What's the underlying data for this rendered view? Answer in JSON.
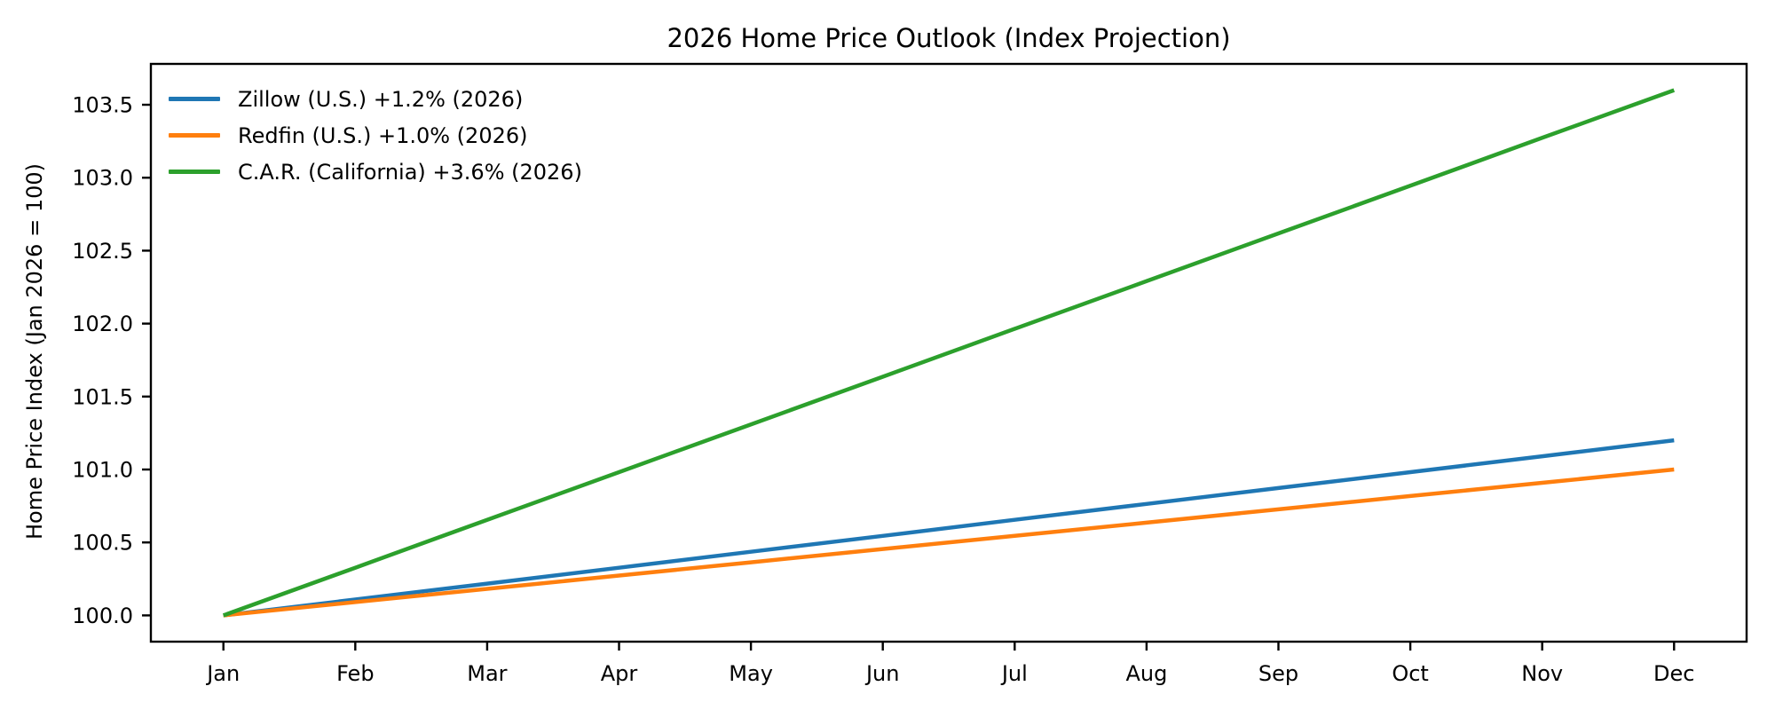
{
  "chart_data": {
    "type": "line",
    "title": "2026 Home Price Outlook (Index Projection)",
    "xlabel": "",
    "ylabel": "Home Price Index (Jan 2026 = 100)",
    "categories": [
      "Jan",
      "Feb",
      "Mar",
      "Apr",
      "May",
      "Jun",
      "Jul",
      "Aug",
      "Sep",
      "Oct",
      "Nov",
      "Dec"
    ],
    "x": [
      0,
      1,
      2,
      3,
      4,
      5,
      6,
      7,
      8,
      9,
      10,
      11
    ],
    "xlim": [
      -0.55,
      11.55
    ],
    "ylim": [
      99.82,
      103.78
    ],
    "yticks": [
      100.0,
      100.5,
      101.0,
      101.5,
      102.0,
      102.5,
      103.0,
      103.5
    ],
    "ytick_labels": [
      "100.0",
      "100.5",
      "101.0",
      "101.5",
      "102.0",
      "102.5",
      "103.0",
      "103.5"
    ],
    "grid": false,
    "legend": {
      "position": "upper-left",
      "frame": false
    },
    "axis_color": "#000000",
    "background_color": "#ffffff",
    "series": [
      {
        "name": "Zillow (U.S.) +1.2% (2026)",
        "slug": "zillow-us",
        "color": "#1f77b4",
        "annual_change_pct": 1.2,
        "values": [
          100.0,
          100.109,
          100.218,
          100.327,
          100.436,
          100.545,
          100.655,
          100.764,
          100.873,
          100.982,
          101.091,
          101.2
        ]
      },
      {
        "name": "Redfin (U.S.) +1.0% (2026)",
        "slug": "redfin-us",
        "color": "#ff7f0e",
        "annual_change_pct": 1.0,
        "values": [
          100.0,
          100.091,
          100.182,
          100.273,
          100.364,
          100.455,
          100.545,
          100.636,
          100.727,
          100.818,
          100.909,
          101.0
        ]
      },
      {
        "name": "C.A.R. (California) +3.6% (2026)",
        "slug": "car-california",
        "color": "#2ca02c",
        "annual_change_pct": 3.6,
        "values": [
          100.0,
          100.327,
          100.655,
          100.982,
          101.309,
          101.636,
          101.964,
          102.291,
          102.618,
          102.945,
          103.273,
          103.6
        ]
      }
    ]
  }
}
